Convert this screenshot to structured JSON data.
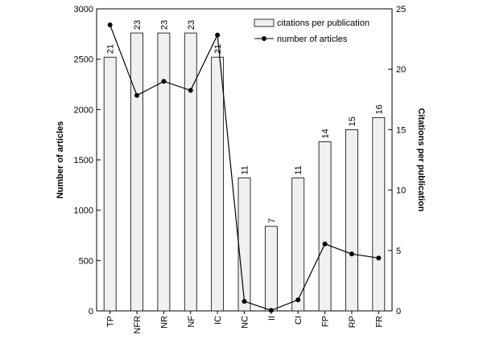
{
  "chart_data": {
    "type": "bar",
    "categories": [
      "TP",
      "NFR",
      "NR",
      "NF",
      "IC",
      "NC",
      "II",
      "CI",
      "FP",
      "RP",
      "FR"
    ],
    "series": [
      {
        "name": "citations per publication",
        "type": "bar",
        "axis": "right",
        "values": [
          21,
          23,
          23,
          23,
          21,
          11,
          7,
          11,
          14,
          15,
          16
        ],
        "color": "#f0f0f0"
      },
      {
        "name": "number of articles",
        "type": "line",
        "axis": "left",
        "values": [
          2840,
          2140,
          2280,
          2190,
          2740,
          95,
          5,
          110,
          665,
          565,
          525
        ],
        "color": "#000000"
      }
    ],
    "data_labels": [
      "21",
      "23",
      "23",
      "23",
      "21",
      "11",
      "7",
      "11",
      "14",
      "15",
      "16"
    ],
    "ylabel": "Number of articles",
    "ylim": [
      0,
      3000
    ],
    "y_ticks": [
      "0",
      "500",
      "1000",
      "1500",
      "2000",
      "2500",
      "3000"
    ],
    "y2label": "Citations per publication",
    "y2lim": [
      0,
      25
    ],
    "y2_ticks": [
      "0",
      "5",
      "10",
      "15",
      "20",
      "25"
    ],
    "grid": false,
    "legend_position": "top-right"
  }
}
